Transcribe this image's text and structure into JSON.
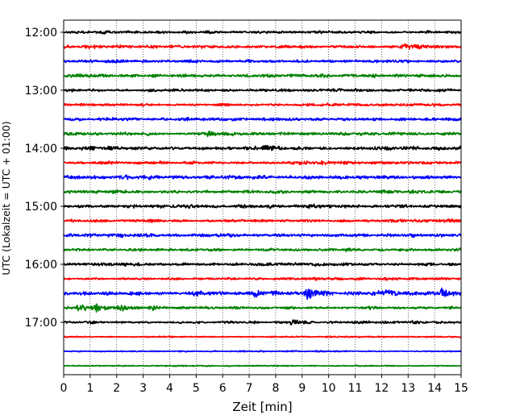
{
  "chart_data": {
    "type": "line",
    "xlabel": "Zeit  [min]",
    "ylabel": "UTC (Lokalzeit = UTC + 01:00)",
    "xlim": [
      0,
      15
    ],
    "x_ticks": [
      0,
      1,
      2,
      3,
      4,
      5,
      6,
      7,
      8,
      9,
      10,
      11,
      12,
      13,
      14,
      15
    ],
    "y_tick_labels": [
      "12:00",
      "13:00",
      "14:00",
      "15:00",
      "16:00",
      "17:00"
    ],
    "grid": "vertical-dotted",
    "series_colors": [
      "#000000",
      "#ff0000",
      "#0000ff",
      "#008000"
    ],
    "traces": [
      {
        "start": "12:00",
        "color": "#000000",
        "activity": 0.55
      },
      {
        "start": "12:15",
        "color": "#ff0000",
        "activity": 0.6,
        "events": [
          {
            "t": 12.8,
            "amp": 2.2
          }
        ]
      },
      {
        "start": "12:30",
        "color": "#0000ff",
        "activity": 0.55
      },
      {
        "start": "12:45",
        "color": "#008000",
        "activity": 0.55
      },
      {
        "start": "13:00",
        "color": "#000000",
        "activity": 0.6
      },
      {
        "start": "13:15",
        "color": "#ff0000",
        "activity": 0.5
      },
      {
        "start": "13:30",
        "color": "#0000ff",
        "activity": 0.55
      },
      {
        "start": "13:45",
        "color": "#008000",
        "activity": 0.65,
        "events": [
          {
            "t": 5.5,
            "amp": 1.8
          }
        ]
      },
      {
        "start": "14:00",
        "color": "#000000",
        "activity": 0.7,
        "events": [
          {
            "t": 7.6,
            "amp": 1.6
          }
        ]
      },
      {
        "start": "14:15",
        "color": "#ff0000",
        "activity": 0.55
      },
      {
        "start": "14:30",
        "color": "#0000ff",
        "activity": 0.7
      },
      {
        "start": "14:45",
        "color": "#008000",
        "activity": 0.6
      },
      {
        "start": "15:00",
        "color": "#000000",
        "activity": 0.65,
        "events": [
          {
            "t": 9.3,
            "amp": 1.6
          }
        ]
      },
      {
        "start": "15:15",
        "color": "#ff0000",
        "activity": 0.55
      },
      {
        "start": "15:30",
        "color": "#0000ff",
        "activity": 0.6
      },
      {
        "start": "15:45",
        "color": "#008000",
        "activity": 0.5
      },
      {
        "start": "16:00",
        "color": "#000000",
        "activity": 0.5
      },
      {
        "start": "16:15",
        "color": "#ff0000",
        "activity": 0.45
      },
      {
        "start": "16:30",
        "color": "#0000ff",
        "activity": 0.8,
        "events": [
          {
            "t": 5.0,
            "amp": 2.0
          },
          {
            "t": 7.2,
            "amp": 2.6
          },
          {
            "t": 9.2,
            "amp": 4.5
          },
          {
            "t": 12.2,
            "amp": 2.0
          },
          {
            "t": 14.3,
            "amp": 3.8
          }
        ]
      },
      {
        "start": "16:45",
        "color": "#008000",
        "activity": 0.45,
        "events": [
          {
            "t": 0.6,
            "amp": 2.2
          },
          {
            "t": 1.2,
            "amp": 2.8
          },
          {
            "t": 2.1,
            "amp": 2.2
          },
          {
            "t": 3.3,
            "amp": 1.8
          }
        ]
      },
      {
        "start": "17:00",
        "color": "#000000",
        "activity": 0.4,
        "events": [
          {
            "t": 8.6,
            "amp": 1.5
          }
        ]
      },
      {
        "start": "17:15",
        "color": "#ff0000",
        "activity": 0.15
      },
      {
        "start": "17:30",
        "color": "#0000ff",
        "activity": 0.05
      },
      {
        "start": "17:45",
        "color": "#008000",
        "activity": 0.05
      }
    ]
  }
}
